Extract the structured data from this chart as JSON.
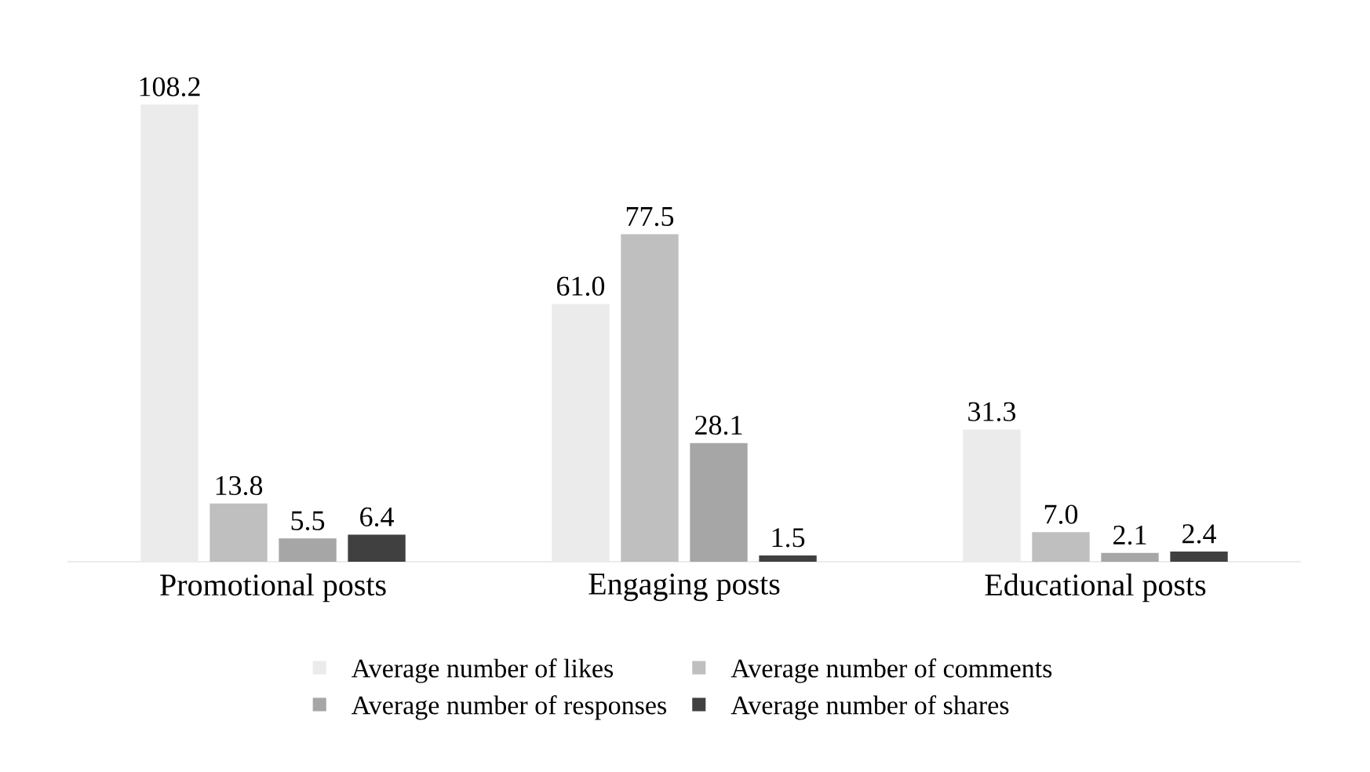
{
  "chart_data": {
    "type": "bar",
    "categories": [
      "Promotional posts",
      "Engaging posts",
      "Educational posts"
    ],
    "series": [
      {
        "name": "Average number of likes",
        "color": "#ebebeb",
        "values": [
          108.2,
          61.0,
          31.3
        ],
        "value_labels": [
          "108.2",
          "61.0",
          "31.3"
        ]
      },
      {
        "name": "Average number of comments",
        "color": "#bfbfbf",
        "values": [
          13.8,
          77.5,
          7.0
        ],
        "value_labels": [
          "13.8",
          "77.5",
          "7.0"
        ]
      },
      {
        "name": "Average number of responses",
        "color": "#a6a6a6",
        "values": [
          5.5,
          28.1,
          2.1
        ],
        "value_labels": [
          "5.5",
          "28.1",
          "2.1"
        ]
      },
      {
        "name": "Average number of shares",
        "color": "#404040",
        "values": [
          6.4,
          1.5,
          2.4
        ],
        "value_labels": [
          "6.4",
          "1.5",
          "2.4"
        ]
      }
    ],
    "legend": "bottom",
    "grid": false
  }
}
